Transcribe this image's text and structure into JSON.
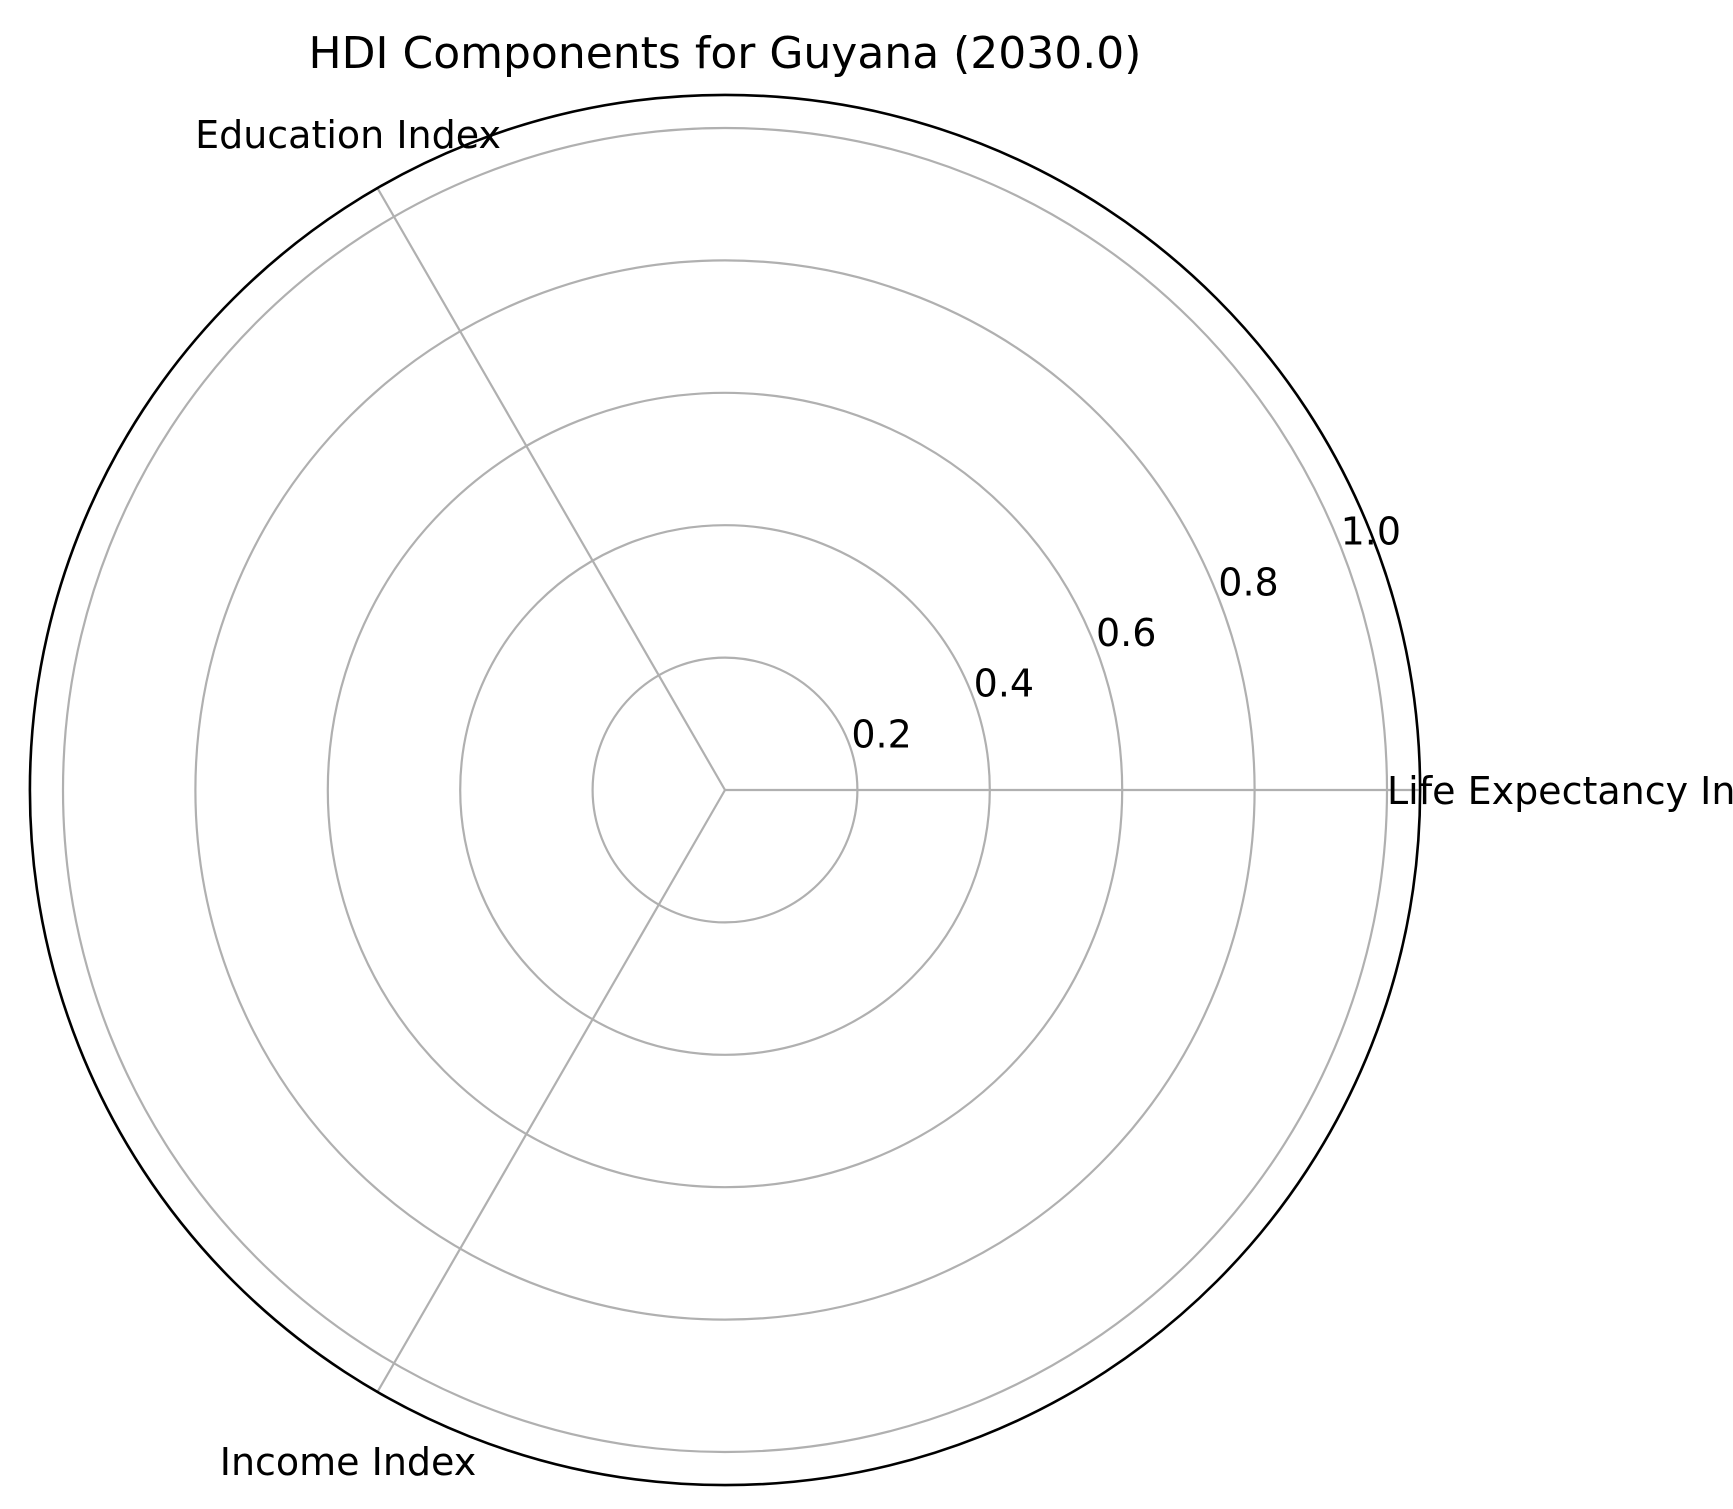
{
  "chart_data": {
    "type": "radar",
    "title": "HDI Components for Guyana (2030.0)",
    "categories": [
      "Life Expectancy Index",
      "Education Index",
      "Income Index"
    ],
    "radial_ticks": [
      0.2,
      0.4,
      0.6,
      0.8,
      1.0
    ],
    "radial_tick_labels": [
      "0.2",
      "0.4",
      "0.6",
      "0.8",
      "1.0"
    ],
    "rlim": [
      0,
      1.05
    ],
    "grid": true,
    "series": [],
    "colors": {
      "grid": "#b0b0b0",
      "frame": "#000000",
      "text": "#000000"
    }
  }
}
